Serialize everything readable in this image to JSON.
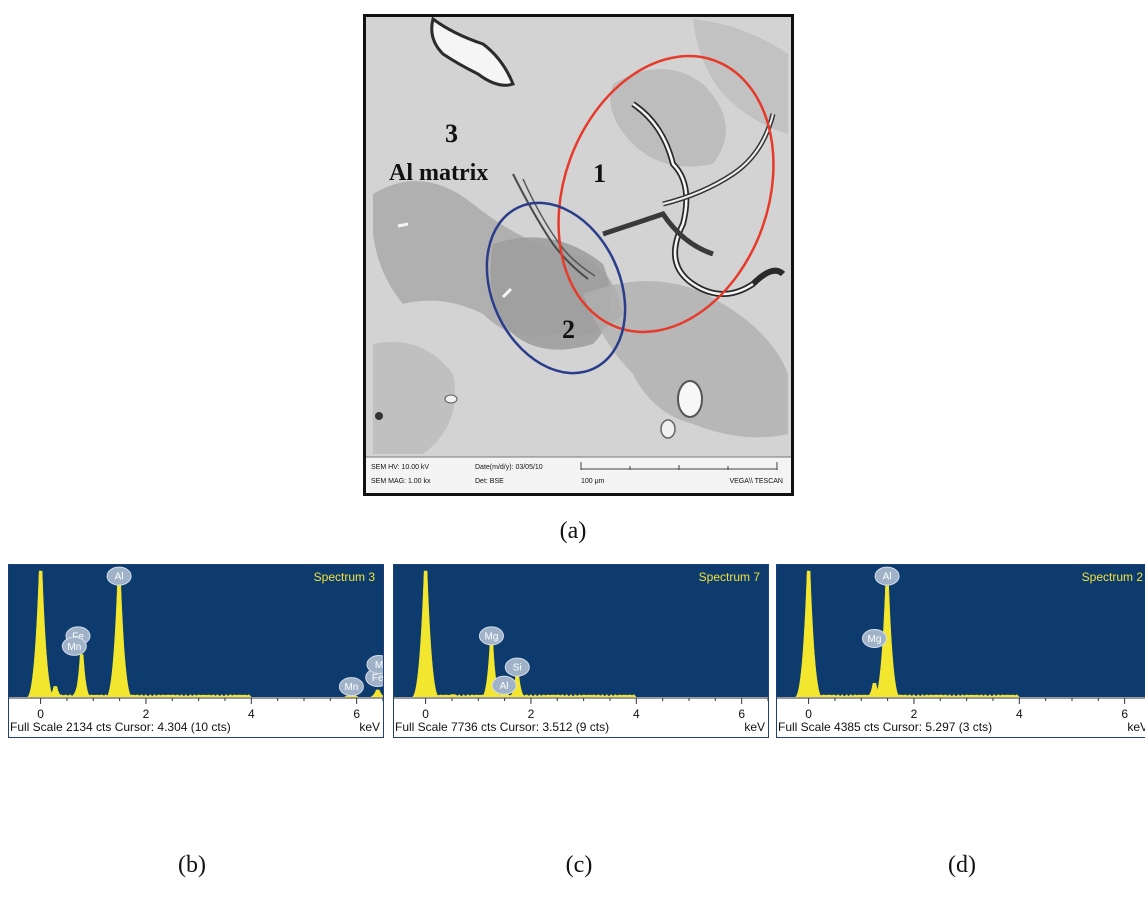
{
  "figure": {
    "panel_a": {
      "caption": "(a)",
      "labels": {
        "region1": "1",
        "region2": "2",
        "region3": "3",
        "matrix": "Al matrix"
      },
      "info_bar": {
        "hv": "SEM HV: 10.00 kV",
        "date": "Date(m/d/y): 03/05/10",
        "mag": "SEM MAG: 1.00 kx",
        "det": "Det: BSE",
        "scale": "100 μm",
        "brand": "VEGA\\\\ TESCAN"
      }
    },
    "spectra": [
      {
        "caption": "(b)",
        "title": "Spectrum 3",
        "footer_left": "Full Scale 2134 cts Cursor: 4.304  (10 cts)",
        "unit": "keV",
        "ticks": [
          "0",
          "2",
          "4",
          "6"
        ],
        "peak_labels": [
          "Al",
          "Fe",
          "Mn",
          "Mn",
          "Fe",
          "M"
        ]
      },
      {
        "caption": "(c)",
        "title": "Spectrum 7",
        "footer_left": "Full Scale 7736 cts Cursor: 3.512  (9 cts)",
        "unit": "keV",
        "ticks": [
          "0",
          "2",
          "4",
          "6"
        ],
        "peak_labels": [
          "Mg",
          "Si",
          "Al"
        ]
      },
      {
        "caption": "(d)",
        "title": "Spectrum 2",
        "footer_left": "Full Scale 4385 cts Cursor: 5.297  (3 cts)",
        "unit": "keV",
        "ticks": [
          "0",
          "2",
          "4",
          "6"
        ],
        "peak_labels": [
          "Al",
          "Mg"
        ]
      }
    ]
  },
  "chart_data": [
    {
      "type": "line",
      "title": "Spectrum 3",
      "xlabel": "keV",
      "xlim": [
        -0.6,
        6.5
      ],
      "ylim": [
        0,
        2134
      ],
      "series": [
        {
          "x": [
            0.0,
            0.28,
            0.71,
            0.78,
            1.49,
            5.9,
            6.4
          ],
          "y": [
            2134,
            180,
            150,
            720,
            1980,
            60,
            120
          ]
        }
      ],
      "annotations": [
        {
          "text": "Al",
          "x": 1.49
        },
        {
          "text": "Fe",
          "x": 0.71
        },
        {
          "text": "Mn",
          "x": 0.64
        },
        {
          "text": "Mn",
          "x": 5.9
        },
        {
          "text": "Fe",
          "x": 6.4
        },
        {
          "text": "M",
          "x": 6.5
        }
      ]
    },
    {
      "type": "line",
      "title": "Spectrum 7",
      "xlabel": "keV",
      "xlim": [
        -0.6,
        6.5
      ],
      "ylim": [
        0,
        7736
      ],
      "series": [
        {
          "x": [
            0.0,
            0.52,
            1.25,
            1.49,
            1.74
          ],
          "y": [
            7736,
            150,
            3300,
            500,
            1400
          ]
        }
      ],
      "annotations": [
        {
          "text": "Mg",
          "x": 1.25
        },
        {
          "text": "Si",
          "x": 1.74
        },
        {
          "text": "Al",
          "x": 1.49
        }
      ]
    },
    {
      "type": "line",
      "title": "Spectrum 2",
      "xlabel": "keV",
      "xlim": [
        -0.6,
        6.5
      ],
      "ylim": [
        0,
        4385
      ],
      "series": [
        {
          "x": [
            0.0,
            1.25,
            1.49
          ],
          "y": [
            4385,
            480,
            3950
          ]
        }
      ],
      "annotations": [
        {
          "text": "Al",
          "x": 1.49
        },
        {
          "text": "Mg",
          "x": 1.25
        }
      ]
    }
  ]
}
